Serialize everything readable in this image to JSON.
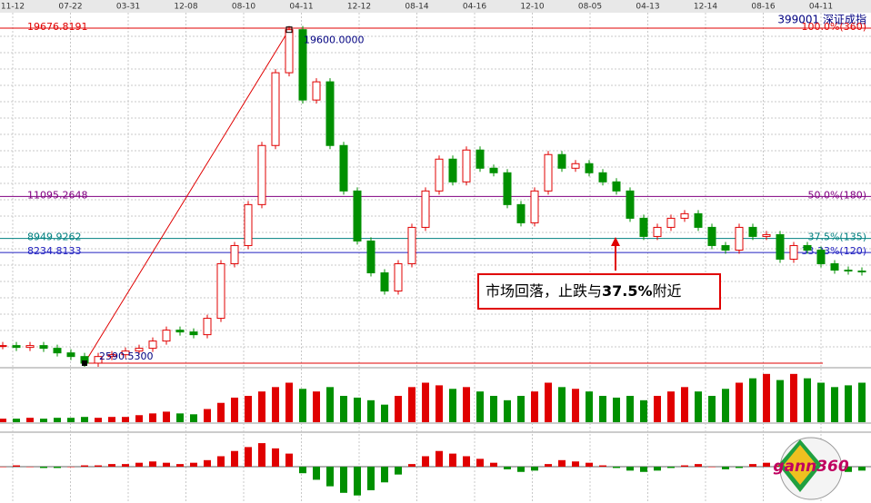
{
  "chart_data": {
    "type": "candlestick",
    "title": "399001 深证成指",
    "x_axis_labels": [
      "11-12",
      "07-22",
      "03-31",
      "12-08",
      "08-10",
      "04-11",
      "12-12",
      "08-14",
      "04-16",
      "12-10",
      "08-05",
      "04-13",
      "12-14",
      "08-16",
      "04-11"
    ],
    "closes": [
      3487,
      3394,
      3487,
      3348,
      3115,
      2929,
      2590.53,
      2929,
      3022,
      3208,
      3348,
      3718,
      4275,
      4182,
      4043,
      4878,
      7662,
      8589,
      10677,
      13692,
      17404,
      19600,
      16012,
      16940,
      13692,
      11373,
      8822,
      7198,
      6270,
      7662,
      9517,
      11373,
      12997,
      11837,
      13461,
      12533,
      12301,
      10677,
      9749,
      11373,
      13229,
      12533,
      12765,
      12301,
      11837,
      11373,
      9981,
      9053,
      9517,
      9981,
      10213,
      9517,
      8589,
      8357,
      9517,
      9053,
      9146,
      7894,
      8589,
      8357,
      7662,
      7337,
      7291,
      7244
    ],
    "up_color": "#e00000",
    "down_color": "#009000",
    "ylim": [
      2358,
      20187
    ],
    "levels": [
      {
        "value": 19676.8191,
        "ratio": "100.0%(360)",
        "color": "#e00000"
      },
      {
        "value": 11095.2648,
        "ratio": "50.0%(180)",
        "color": "#800080"
      },
      {
        "value": 8949.9262,
        "ratio": "37.5%(135)",
        "color": "#008080"
      },
      {
        "value": 8234.8133,
        "ratio": "33.33%(120)",
        "color": "#2020c0"
      }
    ],
    "peak": {
      "value": 19600,
      "label": "19600.0000"
    },
    "low": {
      "value": 2590.53,
      "label": "2590.5300"
    },
    "volume": {
      "values": [
        4,
        4,
        5,
        4,
        5,
        5,
        6,
        5,
        6,
        6,
        8,
        10,
        12,
        10,
        9,
        15,
        22,
        28,
        30,
        35,
        40,
        45,
        38,
        35,
        40,
        30,
        28,
        25,
        20,
        30,
        40,
        45,
        42,
        38,
        40,
        35,
        30,
        25,
        30,
        35,
        45,
        40,
        38,
        35,
        30,
        28,
        30,
        25,
        30,
        35,
        40,
        35,
        30,
        38,
        45,
        50,
        55,
        48,
        55,
        50,
        45,
        40,
        42,
        45
      ],
      "ylim": [
        0,
        60
      ]
    },
    "macd": {
      "values": [
        0,
        1,
        0,
        -1,
        -1,
        0,
        1,
        1,
        2,
        2,
        3,
        4,
        3,
        2,
        3,
        5,
        8,
        12,
        15,
        18,
        14,
        10,
        -5,
        -10,
        -15,
        -20,
        -22,
        -18,
        -12,
        -6,
        2,
        8,
        12,
        10,
        8,
        6,
        3,
        -2,
        -4,
        -3,
        2,
        5,
        4,
        3,
        1,
        -1,
        -3,
        -4,
        -3,
        -1,
        1,
        2,
        0,
        -2,
        -1,
        2,
        3,
        1,
        -2,
        -3,
        -4,
        -3,
        -4,
        -3
      ],
      "ylim": [
        -25,
        25
      ]
    },
    "annotation": {
      "before": "市场回落，止跌与",
      "bold": "37.5%",
      "after": "附近"
    },
    "logo_text": "gann360"
  }
}
